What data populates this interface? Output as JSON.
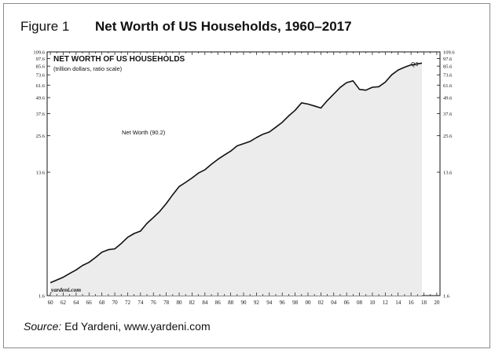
{
  "figure": {
    "label": "Figure 1",
    "title": "Net Worth of US Households, 1960–2017"
  },
  "source": {
    "label": "Source:",
    "text": "Ed Yardeni, www.yardeni.com"
  },
  "chart_data": {
    "type": "area",
    "title": "NET WORTH OF US HOUSEHOLDS",
    "subtitle": "(trillion dollars, ratio scale)",
    "series_label": "Net Worth (90.2)",
    "endpoint_label": "Q3",
    "watermark": "yardeni.com",
    "xlabel": "",
    "ylabel": "",
    "scale": "log",
    "xlim": [
      1959.5,
      2020.5
    ],
    "ylim": [
      1.6,
      109.6
    ],
    "y_ticks": [
      1.6,
      13.6,
      25.6,
      37.6,
      49.6,
      61.6,
      73.6,
      85.6,
      97.6,
      109.6
    ],
    "x_ticks": [
      "60",
      "62",
      "64",
      "66",
      "68",
      "70",
      "72",
      "74",
      "76",
      "78",
      "80",
      "82",
      "84",
      "86",
      "88",
      "90",
      "92",
      "94",
      "96",
      "98",
      "00",
      "02",
      "04",
      "06",
      "08",
      "10",
      "12",
      "14",
      "16",
      "18",
      "20"
    ],
    "grid": false,
    "fill_color": "#ececec",
    "line_color": "#111111",
    "series": [
      {
        "name": "Net Worth (90.2)",
        "x": [
          1960,
          1961,
          1962,
          1963,
          1964,
          1965,
          1966,
          1967,
          1968,
          1969,
          1970,
          1971,
          1972,
          1973,
          1974,
          1975,
          1976,
          1977,
          1978,
          1979,
          1980,
          1981,
          1982,
          1983,
          1984,
          1985,
          1986,
          1987,
          1988,
          1989,
          1990,
          1991,
          1992,
          1993,
          1994,
          1995,
          1996,
          1997,
          1998,
          1999,
          2000,
          2001,
          2002,
          2003,
          2004,
          2005,
          2006,
          2007,
          2008,
          2009,
          2010,
          2011,
          2012,
          2013,
          2014,
          2015,
          2016,
          2017.7
        ],
        "values": [
          2.0,
          2.1,
          2.2,
          2.35,
          2.5,
          2.7,
          2.85,
          3.1,
          3.4,
          3.55,
          3.6,
          3.95,
          4.4,
          4.7,
          4.9,
          5.6,
          6.2,
          6.9,
          7.9,
          9.2,
          10.6,
          11.4,
          12.3,
          13.4,
          14.2,
          15.6,
          17.0,
          18.3,
          19.6,
          21.5,
          22.3,
          23.2,
          24.8,
          26.3,
          27.3,
          29.7,
          32.3,
          36.1,
          39.8,
          45.3,
          44.3,
          42.9,
          41.4,
          47.1,
          52.8,
          59.2,
          64.3,
          66.4,
          57.2,
          56.4,
          59.3,
          59.9,
          64.8,
          73.6,
          80.0,
          84.0,
          87.5,
          90.2
        ]
      }
    ]
  }
}
